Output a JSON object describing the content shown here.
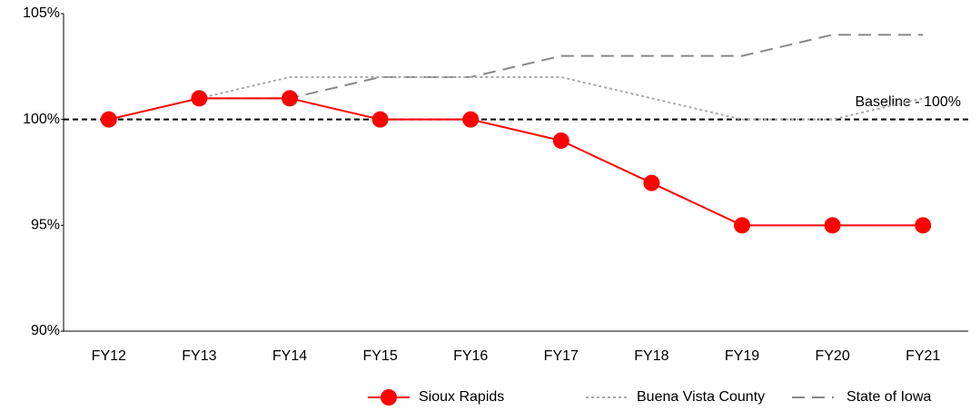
{
  "chart_data": {
    "type": "line",
    "categories": [
      "FY12",
      "FY13",
      "FY14",
      "FY15",
      "FY16",
      "FY17",
      "FY18",
      "FY19",
      "FY20",
      "FY21"
    ],
    "series": [
      {
        "name": "Sioux Rapids",
        "color": "#ff0000",
        "style": "solid-marker",
        "values": [
          100,
          101,
          101,
          100,
          100,
          99,
          97,
          95,
          95,
          95
        ]
      },
      {
        "name": "Buena Vista County",
        "color": "#aaaaaa",
        "style": "dotted",
        "values": [
          100,
          101,
          102,
          102,
          102,
          102,
          101,
          100,
          100,
          101
        ]
      },
      {
        "name": "State of Iowa",
        "color": "#888888",
        "style": "dashed",
        "values": [
          100,
          101,
          101,
          102,
          102,
          103,
          103,
          103,
          104,
          104
        ]
      }
    ],
    "baseline": {
      "value": 100,
      "label": "Baseline - 100%"
    },
    "ylim": [
      90,
      105
    ],
    "yticks": [
      {
        "value": 90,
        "label": "90%"
      },
      {
        "value": 95,
        "label": "95%"
      },
      {
        "value": 100,
        "label": "100%"
      },
      {
        "value": 105,
        "label": "105%"
      }
    ],
    "legend": "bottom-right"
  }
}
